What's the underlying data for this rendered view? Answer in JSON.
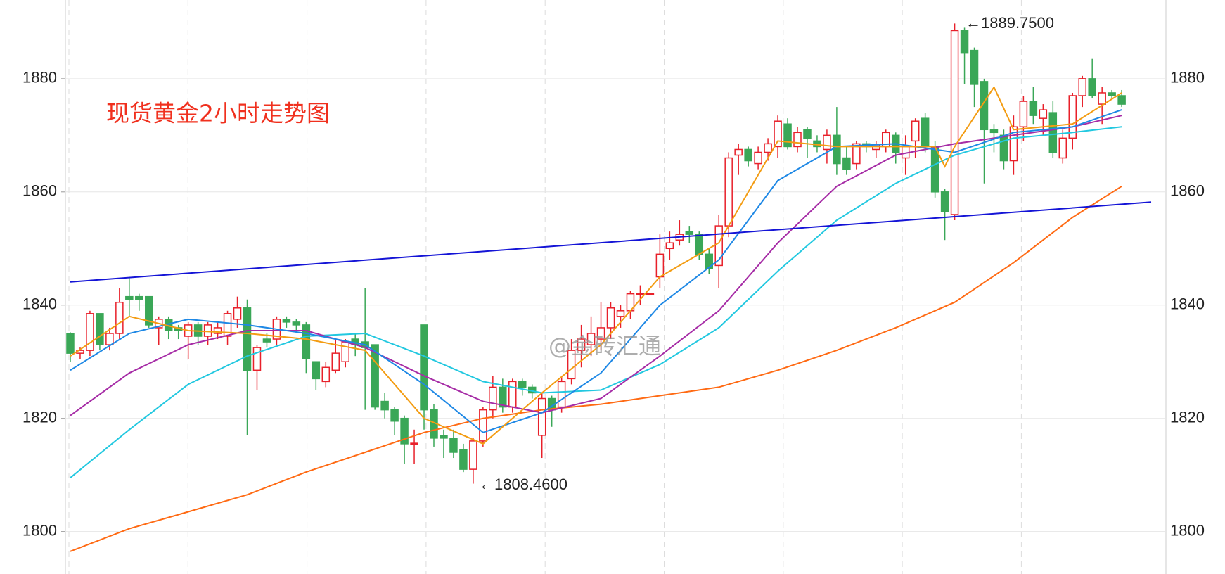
{
  "chart_data": {
    "type": "candlestick",
    "title": "现货黄金2小时走势图",
    "watermark": "@金砖汇通",
    "annotations": [
      "←1889.7500",
      "←1808.4600"
    ],
    "up_color": "#e8202a",
    "down_color": "#3aa757",
    "ylim": [
      1792.5,
      1893.9
    ],
    "yticks": [
      1800,
      1820,
      1840,
      1860,
      1880
    ],
    "xlim": [
      -0.5,
      111.5
    ],
    "grid": true,
    "candles": {
      "open": [
        1835,
        1831.5,
        1832,
        1838.5,
        1833,
        1835,
        1841.5,
        1841.5,
        1841.5,
        1836,
        1837.5,
        1836,
        1834.5,
        1836.5,
        1834.5,
        1835,
        1834.5,
        1837.5,
        1839.5,
        1828.5,
        1834,
        1834,
        1837.5,
        1837,
        1836.5,
        1830,
        1826.5,
        1828.5,
        1830,
        1834,
        1833.5,
        1833,
        1823,
        1821.5,
        1820,
        1815.5,
        1836.5,
        1821.5,
        1817,
        1816.5,
        1814.5,
        1811,
        1816,
        1821.5,
        1825.5,
        1822,
        1826.5,
        1825.5,
        1817,
        1823.5,
        1822,
        1827,
        1832,
        1833,
        1834,
        1836,
        1838,
        1839,
        1842,
        1842,
        1845,
        1850,
        1851.5,
        1853,
        1852.5,
        1849,
        1847,
        1854,
        1866.5,
        1867.5,
        1865,
        1867,
        1868,
        1872,
        1868,
        1871,
        1869,
        1867.5,
        1870,
        1866,
        1865,
        1868.5,
        1867.5,
        1868,
        1870,
        1866,
        1869,
        1873,
        1868,
        1860,
        1856,
        1888.5,
        1885,
        1879.5,
        1871,
        1870,
        1865.5,
        1871.5,
        1876,
        1873,
        1874,
        1866,
        1869.5,
        1877,
        1880,
        1875.5,
        1877.5,
        1877
      ],
      "high": [
        1835.2,
        1832.5,
        1839,
        1838.5,
        1836,
        1843,
        1845,
        1842,
        1841.5,
        1838,
        1838,
        1836.5,
        1837,
        1837,
        1837,
        1837,
        1839,
        1841.5,
        1841,
        1833,
        1835,
        1838,
        1838,
        1837.5,
        1837,
        1830,
        1830,
        1834,
        1834,
        1835,
        1843,
        1833,
        1824.5,
        1822,
        1820.5,
        1818,
        1836.5,
        1822.5,
        1818,
        1818,
        1815.5,
        1816.5,
        1822,
        1827.5,
        1827,
        1827,
        1827,
        1826,
        1824.5,
        1824,
        1827.5,
        1834,
        1836.5,
        1838,
        1840.5,
        1840.5,
        1840,
        1842.5,
        1843.5,
        1842.2,
        1852.5,
        1853,
        1855,
        1854,
        1853,
        1850,
        1856,
        1867,
        1868.5,
        1868,
        1868,
        1869.5,
        1873.5,
        1873,
        1871.5,
        1871.5,
        1870,
        1871,
        1875,
        1868,
        1869,
        1869,
        1869,
        1871,
        1870.5,
        1870,
        1873,
        1874,
        1869,
        1860.5,
        1889.75,
        1889,
        1885.5,
        1880,
        1872,
        1871,
        1873.5,
        1877,
        1878.5,
        1875.5,
        1876,
        1871,
        1877.5,
        1880.5,
        1883.5,
        1878.5,
        1878,
        1878
      ],
      "low": [
        1830,
        1830.5,
        1831,
        1832,
        1832,
        1834,
        1838,
        1839,
        1836,
        1833,
        1834,
        1834,
        1830.5,
        1833,
        1833,
        1834,
        1833,
        1836,
        1817,
        1825,
        1832.5,
        1833,
        1836,
        1835,
        1828,
        1825,
        1825.5,
        1828,
        1829,
        1831,
        1821.5,
        1821.5,
        1820,
        1817,
        1812,
        1812,
        1818,
        1815,
        1813,
        1813,
        1810.5,
        1808.46,
        1815,
        1820,
        1821,
        1821,
        1824,
        1823.5,
        1813,
        1818.5,
        1821,
        1826,
        1829,
        1831,
        1832,
        1834,
        1836,
        1837.5,
        1840,
        1841.8,
        1843,
        1848,
        1850.5,
        1851,
        1848,
        1845.5,
        1843,
        1852,
        1863,
        1864.5,
        1864,
        1865.5,
        1866,
        1867.5,
        1867,
        1866,
        1867,
        1865,
        1863,
        1863,
        1864,
        1867,
        1866,
        1867,
        1865,
        1863,
        1866,
        1867,
        1859,
        1851.5,
        1855,
        1879,
        1875,
        1861.5,
        1867,
        1864,
        1863,
        1869,
        1872,
        1870,
        1866,
        1865,
        1867.5,
        1875,
        1876.5,
        1872,
        1876.5,
        1875
      ],
      "close": [
        1831.5,
        1832,
        1838.5,
        1833,
        1835,
        1840.5,
        1841,
        1841,
        1836.5,
        1837.5,
        1835.5,
        1835.5,
        1836.5,
        1834.5,
        1836.5,
        1836,
        1838.5,
        1839.5,
        1828.5,
        1832.5,
        1833.5,
        1837.5,
        1837,
        1836.5,
        1830.5,
        1827,
        1829,
        1831.5,
        1833.5,
        1833,
        1832.5,
        1822,
        1821.5,
        1819.5,
        1815.5,
        1815.6,
        1821.5,
        1816.5,
        1816.5,
        1814,
        1811,
        1816,
        1821.5,
        1825.5,
        1822,
        1826.5,
        1825.5,
        1824.5,
        1823.5,
        1821.5,
        1826.5,
        1832,
        1834,
        1835,
        1836,
        1839.5,
        1839,
        1842,
        1842.1,
        1842.1,
        1849,
        1851,
        1852.5,
        1852.5,
        1849,
        1846.5,
        1854,
        1866,
        1867.5,
        1865.5,
        1867,
        1868.5,
        1872.5,
        1868,
        1870.5,
        1869.5,
        1868,
        1870,
        1865,
        1864,
        1868.5,
        1868,
        1868.3,
        1870.5,
        1867,
        1868,
        1872.5,
        1868,
        1860,
        1856.5,
        1888.5,
        1884.5,
        1879,
        1871,
        1870.5,
        1865.5,
        1871.5,
        1876,
        1873.5,
        1874.5,
        1867,
        1869.5,
        1877,
        1880,
        1877,
        1877.5,
        1877,
        1875.5
      ]
    },
    "series": [
      {
        "color": "#ff6a13",
        "x": [
          0,
          6,
          12,
          18,
          24,
          30,
          36,
          42,
          48,
          54,
          60,
          66,
          72,
          78,
          84,
          90,
          96,
          102,
          107
        ],
        "values": [
          1796.5,
          1800.5,
          1803.5,
          1806.5,
          1810.5,
          1814,
          1817.5,
          1820,
          1821.5,
          1822.5,
          1824,
          1825.5,
          1828.5,
          1832,
          1836,
          1840.5,
          1847.5,
          1855.5,
          1861
        ]
      },
      {
        "color": "#22c8e0",
        "x": [
          0,
          6,
          12,
          18,
          24,
          30,
          36,
          42,
          48,
          54,
          60,
          66,
          72,
          78,
          84,
          90,
          96,
          102,
          107
        ],
        "values": [
          1809.5,
          1818,
          1826,
          1831,
          1834.5,
          1835,
          1831,
          1826.5,
          1824.5,
          1825,
          1829.5,
          1836,
          1846,
          1855,
          1861.5,
          1866.5,
          1869.5,
          1870.5,
          1871.5
        ]
      },
      {
        "color": "#a62ca6",
        "x": [
          0,
          6,
          12,
          18,
          24,
          30,
          36,
          42,
          48,
          54,
          60,
          66,
          72,
          78,
          84,
          90,
          96,
          102,
          107
        ],
        "values": [
          1820.5,
          1828,
          1833,
          1835.5,
          1835.5,
          1832.5,
          1827.5,
          1823,
          1821,
          1823.5,
          1831,
          1839,
          1851,
          1861,
          1866.5,
          1868.5,
          1870,
          1871.5,
          1873.5
        ]
      },
      {
        "color": "#1e88e5",
        "x": [
          0,
          6,
          12,
          18,
          24,
          30,
          36,
          42,
          48,
          54,
          60,
          66,
          72,
          78,
          84,
          90,
          96,
          102,
          107
        ],
        "values": [
          1828.5,
          1835,
          1837.5,
          1836.5,
          1835,
          1833,
          1826,
          1817.5,
          1821,
          1828,
          1840,
          1848,
          1862,
          1868,
          1868.5,
          1867,
          1870.5,
          1871.5,
          1874.5
        ]
      },
      {
        "color": "#f39c12",
        "x": [
          0,
          6,
          12,
          18,
          24,
          30,
          36,
          42,
          48,
          54,
          60,
          66,
          72,
          78,
          84,
          88,
          89,
          90,
          94,
          96,
          102,
          107
        ],
        "values": [
          1831,
          1838,
          1835.5,
          1835,
          1834,
          1832,
          1820,
          1815.5,
          1824.5,
          1833,
          1845,
          1851,
          1869,
          1868,
          1868,
          1868,
          1864.5,
          1868,
          1878.5,
          1871,
          1872,
          1877.5
        ]
      },
      {
        "color": "#1414d6",
        "x": [
          0,
          110
        ],
        "values": [
          1844.1,
          1858.2
        ]
      }
    ]
  }
}
